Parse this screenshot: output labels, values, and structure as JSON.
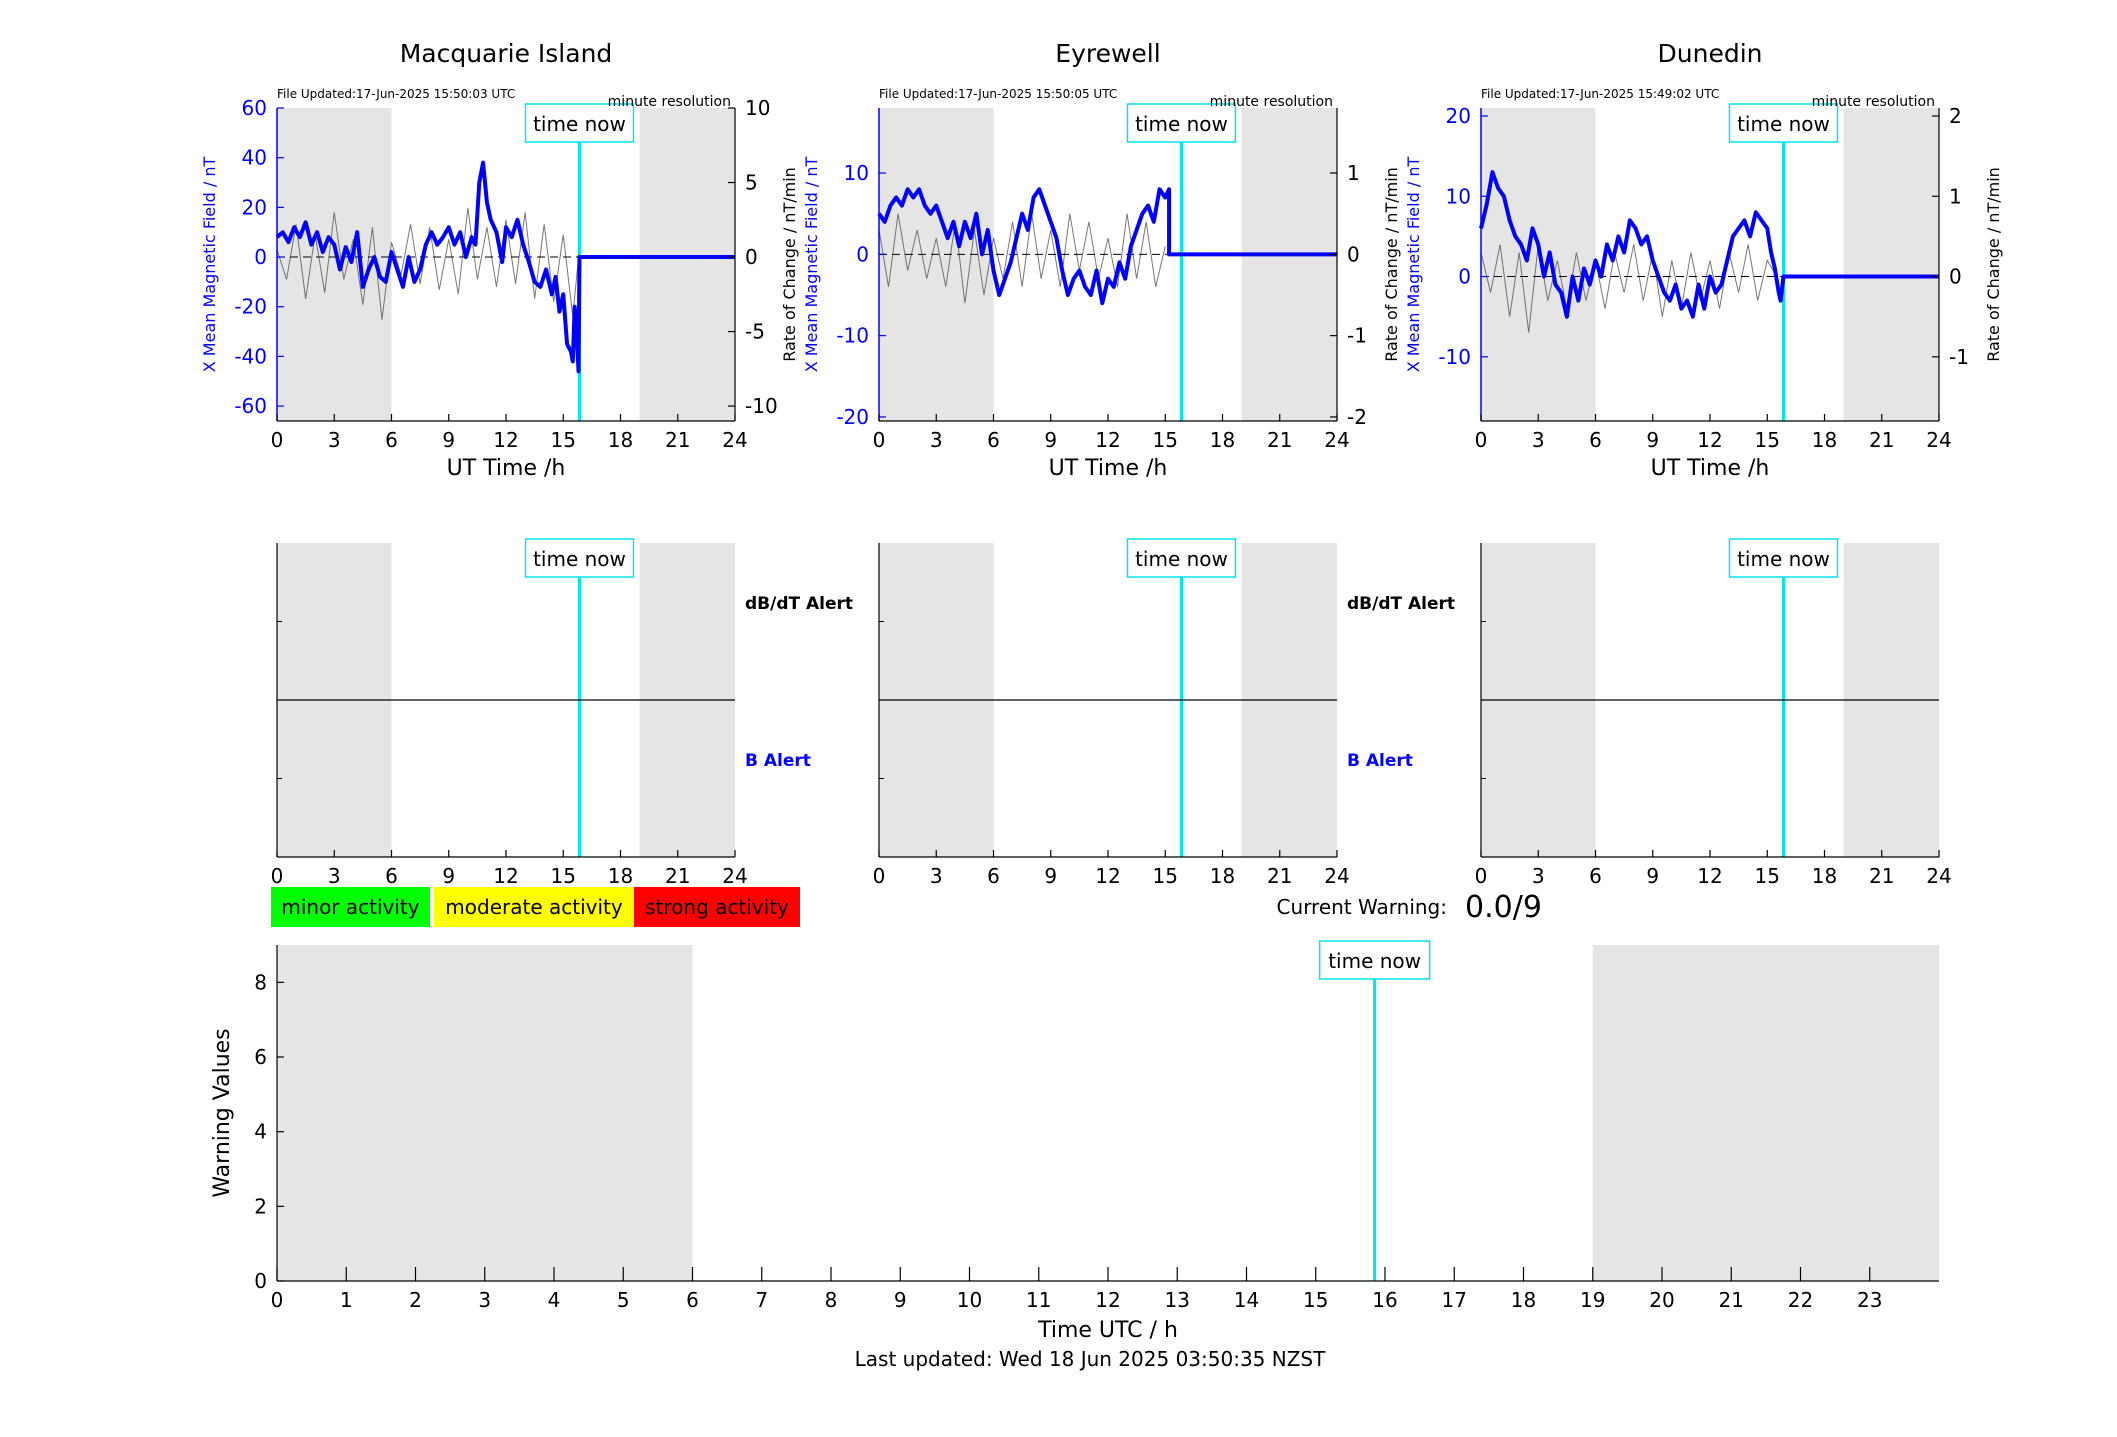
{
  "footer": {
    "last_updated": "Last updated: Wed 18 Jun 2025 03:50:35 NZST"
  },
  "colors": {
    "mag": "#0000ff",
    "now": "#00e5ee",
    "shade": "#e5e5e5",
    "minor": "#00ff00",
    "moderate": "#ffff00",
    "strong": "#ff0000"
  },
  "chart_data": [
    {
      "type": "line",
      "title": "Macquarie Island",
      "file_updated": "File Updated:17-Jun-2025 15:50:03 UTC",
      "resolution": "minute resolution",
      "xlabel": "UT Time /h",
      "ylabel": "X Mean Magnetic Field / nT",
      "y2label": "Rate of Change / nT/min",
      "xlim": [
        0,
        24
      ],
      "xticks": [
        "0",
        "3",
        "6",
        "9",
        "12",
        "15",
        "18",
        "21",
        "24"
      ],
      "ylim": [
        -66,
        60
      ],
      "yticks": [
        "60",
        "40",
        "20",
        "0",
        "-20",
        "-40",
        "-60"
      ],
      "y2lim": [
        -11,
        10
      ],
      "y2ticks": [
        "10",
        "5",
        "0",
        "-5",
        "-10"
      ],
      "shaded_x": [
        [
          0,
          6
        ],
        [
          19,
          24
        ]
      ],
      "time_now": 15.85,
      "time_now_label": "time now",
      "series": [
        {
          "kind": "field",
          "x": [
            0,
            0.3,
            0.6,
            0.9,
            1.2,
            1.5,
            1.8,
            2.1,
            2.4,
            2.7,
            3.0,
            3.3,
            3.6,
            3.9,
            4.2,
            4.5,
            4.8,
            5.1,
            5.4,
            5.7,
            6.0,
            6.3,
            6.6,
            6.9,
            7.2,
            7.5,
            7.8,
            8.1,
            8.4,
            8.7,
            9.0,
            9.3,
            9.6,
            9.9,
            10.2,
            10.4,
            10.6,
            10.8,
            11.0,
            11.2,
            11.5,
            11.8,
            12.0,
            12.3,
            12.6,
            12.9,
            13.2,
            13.5,
            13.8,
            14.1,
            14.4,
            14.6,
            14.8,
            15.0,
            15.2,
            15.4,
            15.5,
            15.6,
            15.7,
            15.8,
            15.85,
            16.5,
            18,
            20,
            22,
            24
          ],
          "y": [
            8,
            10,
            6,
            12,
            8,
            14,
            5,
            10,
            2,
            8,
            5,
            -5,
            4,
            -2,
            10,
            -12,
            -5,
            0,
            -8,
            -10,
            2,
            -5,
            -12,
            0,
            -10,
            -5,
            5,
            10,
            5,
            8,
            12,
            5,
            10,
            0,
            8,
            5,
            30,
            38,
            22,
            15,
            10,
            -2,
            12,
            8,
            15,
            5,
            -2,
            -10,
            -12,
            -5,
            -15,
            -8,
            -22,
            -15,
            -35,
            -38,
            -42,
            -20,
            -30,
            -46,
            0,
            0,
            0,
            0,
            0,
            0
          ]
        },
        {
          "kind": "rate",
          "x": [
            0,
            0.5,
            1,
            1.5,
            2,
            2.5,
            3,
            3.5,
            4,
            4.5,
            5,
            5.5,
            6,
            6.5,
            7,
            7.5,
            8,
            8.5,
            9,
            9.5,
            10,
            10.5,
            11,
            11.5,
            12,
            12.5,
            13,
            13.5,
            14,
            14.5,
            15,
            15.5,
            15.8
          ],
          "y": [
            0.5,
            -1.5,
            2.2,
            -2.8,
            1.5,
            -2.4,
            3.0,
            -1.5,
            1.2,
            -3.2,
            2.0,
            -4.2,
            1.0,
            -1.2,
            2.2,
            -1.8,
            2.0,
            -2.2,
            1.2,
            -2.5,
            3.3,
            -1.5,
            2.0,
            -2.0,
            2.5,
            -1.8,
            3.0,
            -2.8,
            2.2,
            -3.0,
            1.5,
            -4.0,
            0
          ]
        }
      ]
    },
    {
      "type": "line",
      "title": "Eyrewell",
      "file_updated": "File Updated:17-Jun-2025 15:50:05 UTC",
      "resolution": "minute resolution",
      "xlabel": "UT Time /h",
      "ylabel": "X Mean Magnetic Field / nT",
      "y2label": "Rate of Change / nT/min",
      "xlim": [
        0,
        24
      ],
      "xticks": [
        "0",
        "3",
        "6",
        "9",
        "12",
        "15",
        "18",
        "21",
        "24"
      ],
      "ylim": [
        -20.5,
        18
      ],
      "yticks": [
        "10",
        "0",
        "-10",
        "-20"
      ],
      "y2lim": [
        -2.05,
        1.8
      ],
      "y2ticks": [
        "1",
        "0",
        "-1",
        "-2"
      ],
      "shaded_x": [
        [
          0,
          6
        ],
        [
          19,
          24
        ]
      ],
      "time_now": 15.85,
      "time_now_label": "time now",
      "series": [
        {
          "kind": "field",
          "x": [
            0,
            0.3,
            0.6,
            0.9,
            1.2,
            1.5,
            1.8,
            2.1,
            2.4,
            2.7,
            3.0,
            3.3,
            3.6,
            3.9,
            4.2,
            4.5,
            4.8,
            5.1,
            5.4,
            5.7,
            6.0,
            6.3,
            6.6,
            6.9,
            7.2,
            7.5,
            7.8,
            8.1,
            8.4,
            8.7,
            9.0,
            9.3,
            9.6,
            9.9,
            10.2,
            10.5,
            10.8,
            11.1,
            11.4,
            11.7,
            12.0,
            12.3,
            12.6,
            12.9,
            13.2,
            13.5,
            13.8,
            14.1,
            14.4,
            14.7,
            15.0,
            15.2,
            15.2,
            15.85,
            16.5,
            18,
            20,
            22,
            24
          ],
          "y": [
            5,
            4,
            6,
            7,
            6,
            8,
            7,
            8,
            6,
            5,
            6,
            4,
            2,
            4,
            1,
            4,
            2,
            5,
            0,
            3,
            -2,
            -5,
            -3,
            -1,
            2,
            5,
            3,
            7,
            8,
            6,
            4,
            2,
            -2,
            -5,
            -3,
            -2,
            -4,
            -5,
            -2,
            -6,
            -3,
            -4,
            -1,
            -3,
            1,
            3,
            5,
            6,
            4,
            8,
            7,
            8,
            0,
            0,
            0,
            0,
            0,
            0,
            0
          ]
        },
        {
          "kind": "rate",
          "x": [
            0,
            0.5,
            1,
            1.5,
            2,
            2.5,
            3,
            3.5,
            4,
            4.5,
            5,
            5.5,
            6,
            6.5,
            7,
            7.5,
            8,
            8.5,
            9,
            9.5,
            10,
            10.5,
            11,
            11.5,
            12,
            12.5,
            13,
            13.5,
            14,
            14.5,
            15
          ],
          "y": [
            0.3,
            -0.4,
            0.5,
            -0.2,
            0.3,
            -0.3,
            0.2,
            -0.4,
            0.4,
            -0.6,
            0.3,
            -0.5,
            0.2,
            -0.3,
            0.4,
            -0.4,
            0.5,
            -0.3,
            0.3,
            -0.4,
            0.5,
            -0.2,
            0.4,
            -0.3,
            0.2,
            -0.4,
            0.5,
            -0.3,
            0.4,
            -0.4,
            0.1
          ]
        }
      ]
    },
    {
      "type": "line",
      "title": "Dunedin",
      "file_updated": "File Updated:17-Jun-2025 15:49:02 UTC",
      "resolution": "minute resolution",
      "xlabel": "UT Time /h",
      "ylabel": "X Mean Magnetic Field / nT",
      "y2label": "Rate of Change / nT/min",
      "xlim": [
        0,
        24
      ],
      "xticks": [
        "0",
        "3",
        "6",
        "9",
        "12",
        "15",
        "18",
        "21",
        "24"
      ],
      "ylim": [
        -18,
        21
      ],
      "yticks": [
        "20",
        "10",
        "0",
        "-10"
      ],
      "y2lim": [
        -1.8,
        2.1
      ],
      "y2ticks": [
        "2",
        "1",
        "0",
        "-1"
      ],
      "shaded_x": [
        [
          0,
          6
        ],
        [
          19,
          24
        ]
      ],
      "time_now": 15.85,
      "time_now_label": "time now",
      "series": [
        {
          "kind": "field",
          "x": [
            0,
            0.3,
            0.6,
            0.9,
            1.2,
            1.5,
            1.8,
            2.1,
            2.4,
            2.7,
            3.0,
            3.3,
            3.6,
            3.9,
            4.2,
            4.5,
            4.8,
            5.1,
            5.4,
            5.7,
            6.0,
            6.3,
            6.6,
            6.9,
            7.2,
            7.5,
            7.8,
            8.1,
            8.4,
            8.7,
            9.0,
            9.3,
            9.6,
            9.9,
            10.2,
            10.5,
            10.8,
            11.1,
            11.4,
            11.7,
            12.0,
            12.3,
            12.6,
            12.9,
            13.2,
            13.5,
            13.8,
            14.1,
            14.4,
            14.7,
            15.0,
            15.2,
            15.4,
            15.6,
            15.7,
            15.85,
            16.5,
            18,
            20,
            22,
            24
          ],
          "y": [
            6,
            9,
            13,
            11,
            10,
            7,
            5,
            4,
            2,
            6,
            4,
            0,
            3,
            -1,
            -2,
            -5,
            0,
            -3,
            1,
            -1,
            2,
            0,
            4,
            2,
            5,
            3,
            7,
            6,
            4,
            5,
            2,
            0,
            -2,
            -3,
            -1,
            -4,
            -3,
            -5,
            -1,
            -4,
            0,
            -2,
            -1,
            2,
            5,
            6,
            7,
            5,
            8,
            7,
            6,
            3,
            1,
            -2,
            -3,
            0,
            0,
            0,
            0,
            0,
            0
          ]
        },
        {
          "kind": "rate",
          "x": [
            0,
            0.5,
            1,
            1.5,
            2,
            2.5,
            3,
            3.5,
            4,
            4.5,
            5,
            5.5,
            6,
            6.5,
            7,
            7.5,
            8,
            8.5,
            9,
            9.5,
            10,
            10.5,
            11,
            11.5,
            12,
            12.5,
            13,
            13.5,
            14,
            14.5,
            15,
            15.5
          ],
          "y": [
            0.3,
            -0.2,
            0.4,
            -0.5,
            0.3,
            -0.7,
            0.4,
            -0.3,
            0.2,
            -0.4,
            0.3,
            -0.3,
            0.2,
            -0.4,
            0.3,
            -0.2,
            0.4,
            -0.3,
            0.3,
            -0.5,
            0.2,
            -0.4,
            0.3,
            -0.3,
            0.2,
            -0.4,
            0.3,
            -0.2,
            0.4,
            -0.3,
            0.2,
            0
          ]
        }
      ]
    },
    {
      "type": "line",
      "title": "",
      "alert_labels": {
        "db_dt": "dB/dT Alert",
        "b": "B Alert"
      },
      "xlim": [
        0,
        24
      ],
      "xticks": [
        "0",
        "3",
        "6",
        "9",
        "12",
        "15",
        "18",
        "21",
        "24"
      ],
      "shaded_x": [
        [
          0,
          6
        ],
        [
          19,
          24
        ]
      ],
      "time_now": 15.85,
      "time_now_label": "time now",
      "series": []
    },
    {
      "type": "line",
      "title": "",
      "alert_labels": {
        "db_dt": "dB/dT Alert",
        "b": "B Alert"
      },
      "xlim": [
        0,
        24
      ],
      "xticks": [
        "0",
        "3",
        "6",
        "9",
        "12",
        "15",
        "18",
        "21",
        "24"
      ],
      "shaded_x": [
        [
          0,
          6
        ],
        [
          19,
          24
        ]
      ],
      "time_now": 15.85,
      "time_now_label": "time now",
      "series": []
    },
    {
      "type": "line",
      "title": "",
      "xlim": [
        0,
        24
      ],
      "xticks": [
        "0",
        "3",
        "6",
        "9",
        "12",
        "15",
        "18",
        "21",
        "24"
      ],
      "shaded_x": [
        [
          0,
          6
        ],
        [
          19,
          24
        ]
      ],
      "time_now": 15.85,
      "time_now_label": "time now",
      "series": []
    },
    {
      "type": "line",
      "title": "",
      "xlabel": "Time UTC / h",
      "ylabel": "Warning Values",
      "xlim": [
        0,
        24
      ],
      "xticks": [
        "0",
        "1",
        "2",
        "3",
        "4",
        "5",
        "6",
        "7",
        "8",
        "9",
        "10",
        "11",
        "12",
        "13",
        "14",
        "15",
        "16",
        "17",
        "18",
        "19",
        "20",
        "21",
        "22",
        "23"
      ],
      "ylim": [
        0,
        9
      ],
      "yticks": [
        "0",
        "2",
        "4",
        "6",
        "8"
      ],
      "shaded_x": [
        [
          0,
          6
        ],
        [
          19,
          24
        ]
      ],
      "time_now": 15.85,
      "time_now_label": "time now",
      "legend": [
        "minor activity",
        "moderate activity",
        "strong activity"
      ],
      "current_warning_label": "Current Warning:",
      "current_warning_value": "0.0/9",
      "series": []
    }
  ]
}
